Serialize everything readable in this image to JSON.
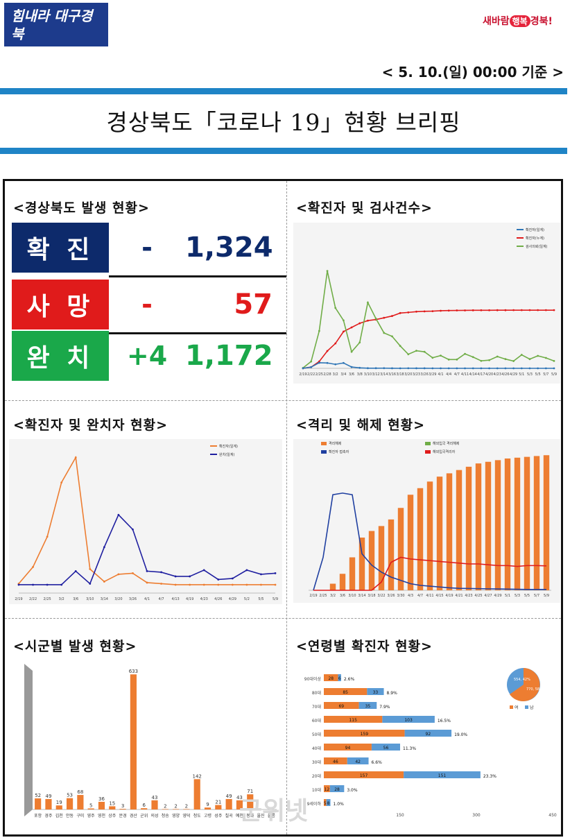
{
  "header": {
    "logo_left": "힘내라 대구경북",
    "logo_right_pre": "새바람",
    "logo_right_heart": "행복",
    "logo_right_post": "경북!",
    "date": "< 5. 10.(일) 00:00 기준 >",
    "title": "경상북도「코로나 19」현황 브리핑"
  },
  "status": {
    "heading": "<경상북도 발생 현황>",
    "rows": [
      {
        "label": "확 진",
        "delta": "-",
        "total": "1,324",
        "color": "#0d2a6b",
        "text_color": "#0d2a6b"
      },
      {
        "label": "사 망",
        "delta": "-",
        "total": "57",
        "color": "#e01b1b",
        "text_color": "#e01b1b"
      },
      {
        "label": "완 치",
        "delta": "+4",
        "total": "1,172",
        "color": "#1aa84a",
        "text_color": "#1aa84a"
      }
    ]
  },
  "panels": {
    "tests": "<확진자 및 검사건수>",
    "recovered": "<확진자 및 완치자 현황>",
    "isolation": "<격리 및 해제 현황>",
    "region": "<시군별 발생 현황>",
    "age": "<연령별 확진자 현황>"
  },
  "watermark": "군위넷",
  "chart_data": [
    {
      "type": "line",
      "title": "확진자 및 검사건수",
      "legend": [
        "확진자(일계)",
        "확진자(누계)",
        "검사의뢰(일계)"
      ],
      "colors": [
        "#2e75b6",
        "#e01b1b",
        "#70ad47"
      ],
      "x": [
        "2/19",
        "2/22",
        "2/25",
        "2/28",
        "3/2",
        "3/4",
        "3/6",
        "3/8",
        "3/10",
        "3/12",
        "3/14",
        "3/16",
        "3/18",
        "3/20",
        "3/23",
        "3/26",
        "3/29",
        "4/1",
        "4/4",
        "4/7",
        "4/11",
        "4/14",
        "4/17",
        "4/20",
        "4/23",
        "4/26",
        "4/29",
        "5/1",
        "5/3",
        "5/5",
        "5/7",
        "5/9"
      ],
      "series": [
        {
          "name": "확진자(누계)",
          "values": [
            1,
            28,
            155,
            394,
            566,
            837,
            931,
            1025,
            1086,
            1110,
            1150,
            1191,
            1258,
            1273,
            1290,
            1297,
            1301,
            1311,
            1315,
            1318,
            1319,
            1321,
            1322,
            1322,
            1323,
            1323,
            1324,
            1324,
            1324,
            1324,
            1324,
            1324
          ]
        },
        {
          "name": "검사의뢰(일계)",
          "values": [
            10,
            155,
            850,
            2216,
            1375,
            1091,
            376,
            588,
            1497,
            1133,
            806,
            728,
            510,
            320,
            400,
            376,
            240,
            290,
            200,
            200,
            330,
            256,
            170,
            186,
            269,
            210,
            165,
            307,
            210,
            284,
            237,
            168
          ]
        },
        {
          "name": "확진자(일계)",
          "values": [
            1,
            27,
            127,
            122,
            91,
            122,
            30,
            11,
            3,
            3,
            4,
            1,
            0,
            2,
            1,
            1,
            0,
            0,
            0,
            0,
            0,
            0,
            0,
            0,
            0,
            0,
            0,
            0,
            0,
            0,
            0,
            0
          ]
        }
      ],
      "ylim": [
        0,
        3000
      ]
    },
    {
      "type": "line",
      "title": "확진자 및 완치자 현황",
      "legend": [
        "확진자(일계)",
        "완치(일계)"
      ],
      "colors": [
        "#ed7d31",
        "#1f1fa0"
      ],
      "x": [
        "2/19",
        "2/22",
        "2/25",
        "3/2",
        "3/6",
        "3/10",
        "3/14",
        "3/20",
        "3/26",
        "4/1",
        "4/7",
        "4/13",
        "4/19",
        "4/23",
        "4/26",
        "4/29",
        "5/2",
        "5/5",
        "5/9"
      ],
      "series": [
        {
          "name": "확진자(일계)",
          "values": [
            1,
            17,
            46,
            98,
            122,
            15,
            3,
            10,
            11,
            2,
            1,
            0,
            0,
            0,
            0,
            0,
            0,
            0,
            0
          ]
        },
        {
          "name": "완치(일계)",
          "values": [
            0,
            0,
            0,
            0,
            13,
            1,
            36,
            67,
            53,
            13,
            12,
            8,
            8,
            14,
            5,
            6,
            14,
            10,
            11
          ]
        }
      ],
      "ylim": [
        -8,
        125
      ]
    },
    {
      "type": "bar",
      "title": "격리 및 해제 현황",
      "legend": [
        "격리해제",
        "해외입국 격리해제",
        "확진자 접촉자",
        "해외입국격리자"
      ],
      "colors": [
        "#ed7d31",
        "#70ad47",
        "#1f3fa0",
        "#e01b1b"
      ],
      "categories": [
        "2/19",
        "2/25",
        "3/2",
        "3/6",
        "3/10",
        "3/14",
        "3/18",
        "3/22",
        "3/26",
        "3/30",
        "4/3",
        "4/7",
        "4/11",
        "4/15",
        "4/19",
        "4/21",
        "4/23",
        "4/25",
        "4/27",
        "4/29",
        "5/1",
        "5/3",
        "5/5",
        "5/7",
        "5/9"
      ],
      "series": [
        {
          "name": "격리해제",
          "values": [
            0,
            0,
            400,
            1000,
            2000,
            3200,
            3600,
            3900,
            4300,
            5000,
            5800,
            6200,
            6600,
            6900,
            7100,
            7300,
            7500,
            7700,
            7800,
            7900,
            8000,
            8050,
            8100,
            8150,
            8200
          ]
        },
        {
          "name": "확진자 접촉자",
          "values": [
            0,
            2000,
            5800,
            5900,
            5800,
            2213,
            1528,
            1100,
            800,
            600,
            400,
            300,
            250,
            200,
            150,
            120,
            110,
            100,
            90,
            80,
            70,
            60,
            50,
            50,
            50
          ]
        },
        {
          "name": "해외입국격리자",
          "values": [
            0,
            0,
            0,
            0,
            0,
            0,
            0,
            500,
            1700,
            2000,
            1900,
            1850,
            1800,
            1750,
            1700,
            1650,
            1600,
            1600,
            1550,
            1500,
            1500,
            1450,
            1500,
            1500,
            1480
          ]
        }
      ],
      "ylim": [
        0,
        8000
      ]
    },
    {
      "type": "bar",
      "title": "시군별 발생 현황",
      "categories": [
        "포항",
        "경주",
        "김천",
        "안동",
        "구미",
        "영주",
        "영천",
        "상주",
        "문경",
        "경산",
        "군위",
        "의성",
        "청송",
        "영양",
        "영덕",
        "청도",
        "고령",
        "성주",
        "칠곡",
        "예천",
        "봉화",
        "울진",
        "울릉"
      ],
      "values": [
        52,
        49,
        19,
        53,
        68,
        5,
        36,
        15,
        3,
        633,
        6,
        43,
        2,
        2,
        2,
        142,
        9,
        21,
        49,
        43,
        71,
        0,
        0
      ],
      "ylim": [
        0,
        650
      ]
    },
    {
      "type": "bar",
      "title": "연령별 확진자 현황",
      "legend": [
        "여",
        "남"
      ],
      "colors": [
        "#ed7d31",
        "#5b9bd5"
      ],
      "categories": [
        "90대이상",
        "80대",
        "70대",
        "60대",
        "50대",
        "40대",
        "30대",
        "20대",
        "10대",
        "9세이하"
      ],
      "series": [
        {
          "name": "여",
          "values": [
            28,
            85,
            69,
            115,
            159,
            94,
            46,
            157,
            12,
            5
          ]
        },
        {
          "name": "남",
          "values": [
            6,
            33,
            35,
            103,
            92,
            56,
            42,
            151,
            28,
            8
          ]
        }
      ],
      "percent": [
        "2.6%",
        "8.9%",
        "7.9%",
        "16.5%",
        "19.0%",
        "11.3%",
        "6.6%",
        "23.3%",
        "3.0%",
        "1.0%"
      ],
      "pie": {
        "남": "554, 42%",
        "여": "770, 58%"
      },
      "xticks": [
        "150",
        "300",
        "450"
      ]
    }
  ]
}
